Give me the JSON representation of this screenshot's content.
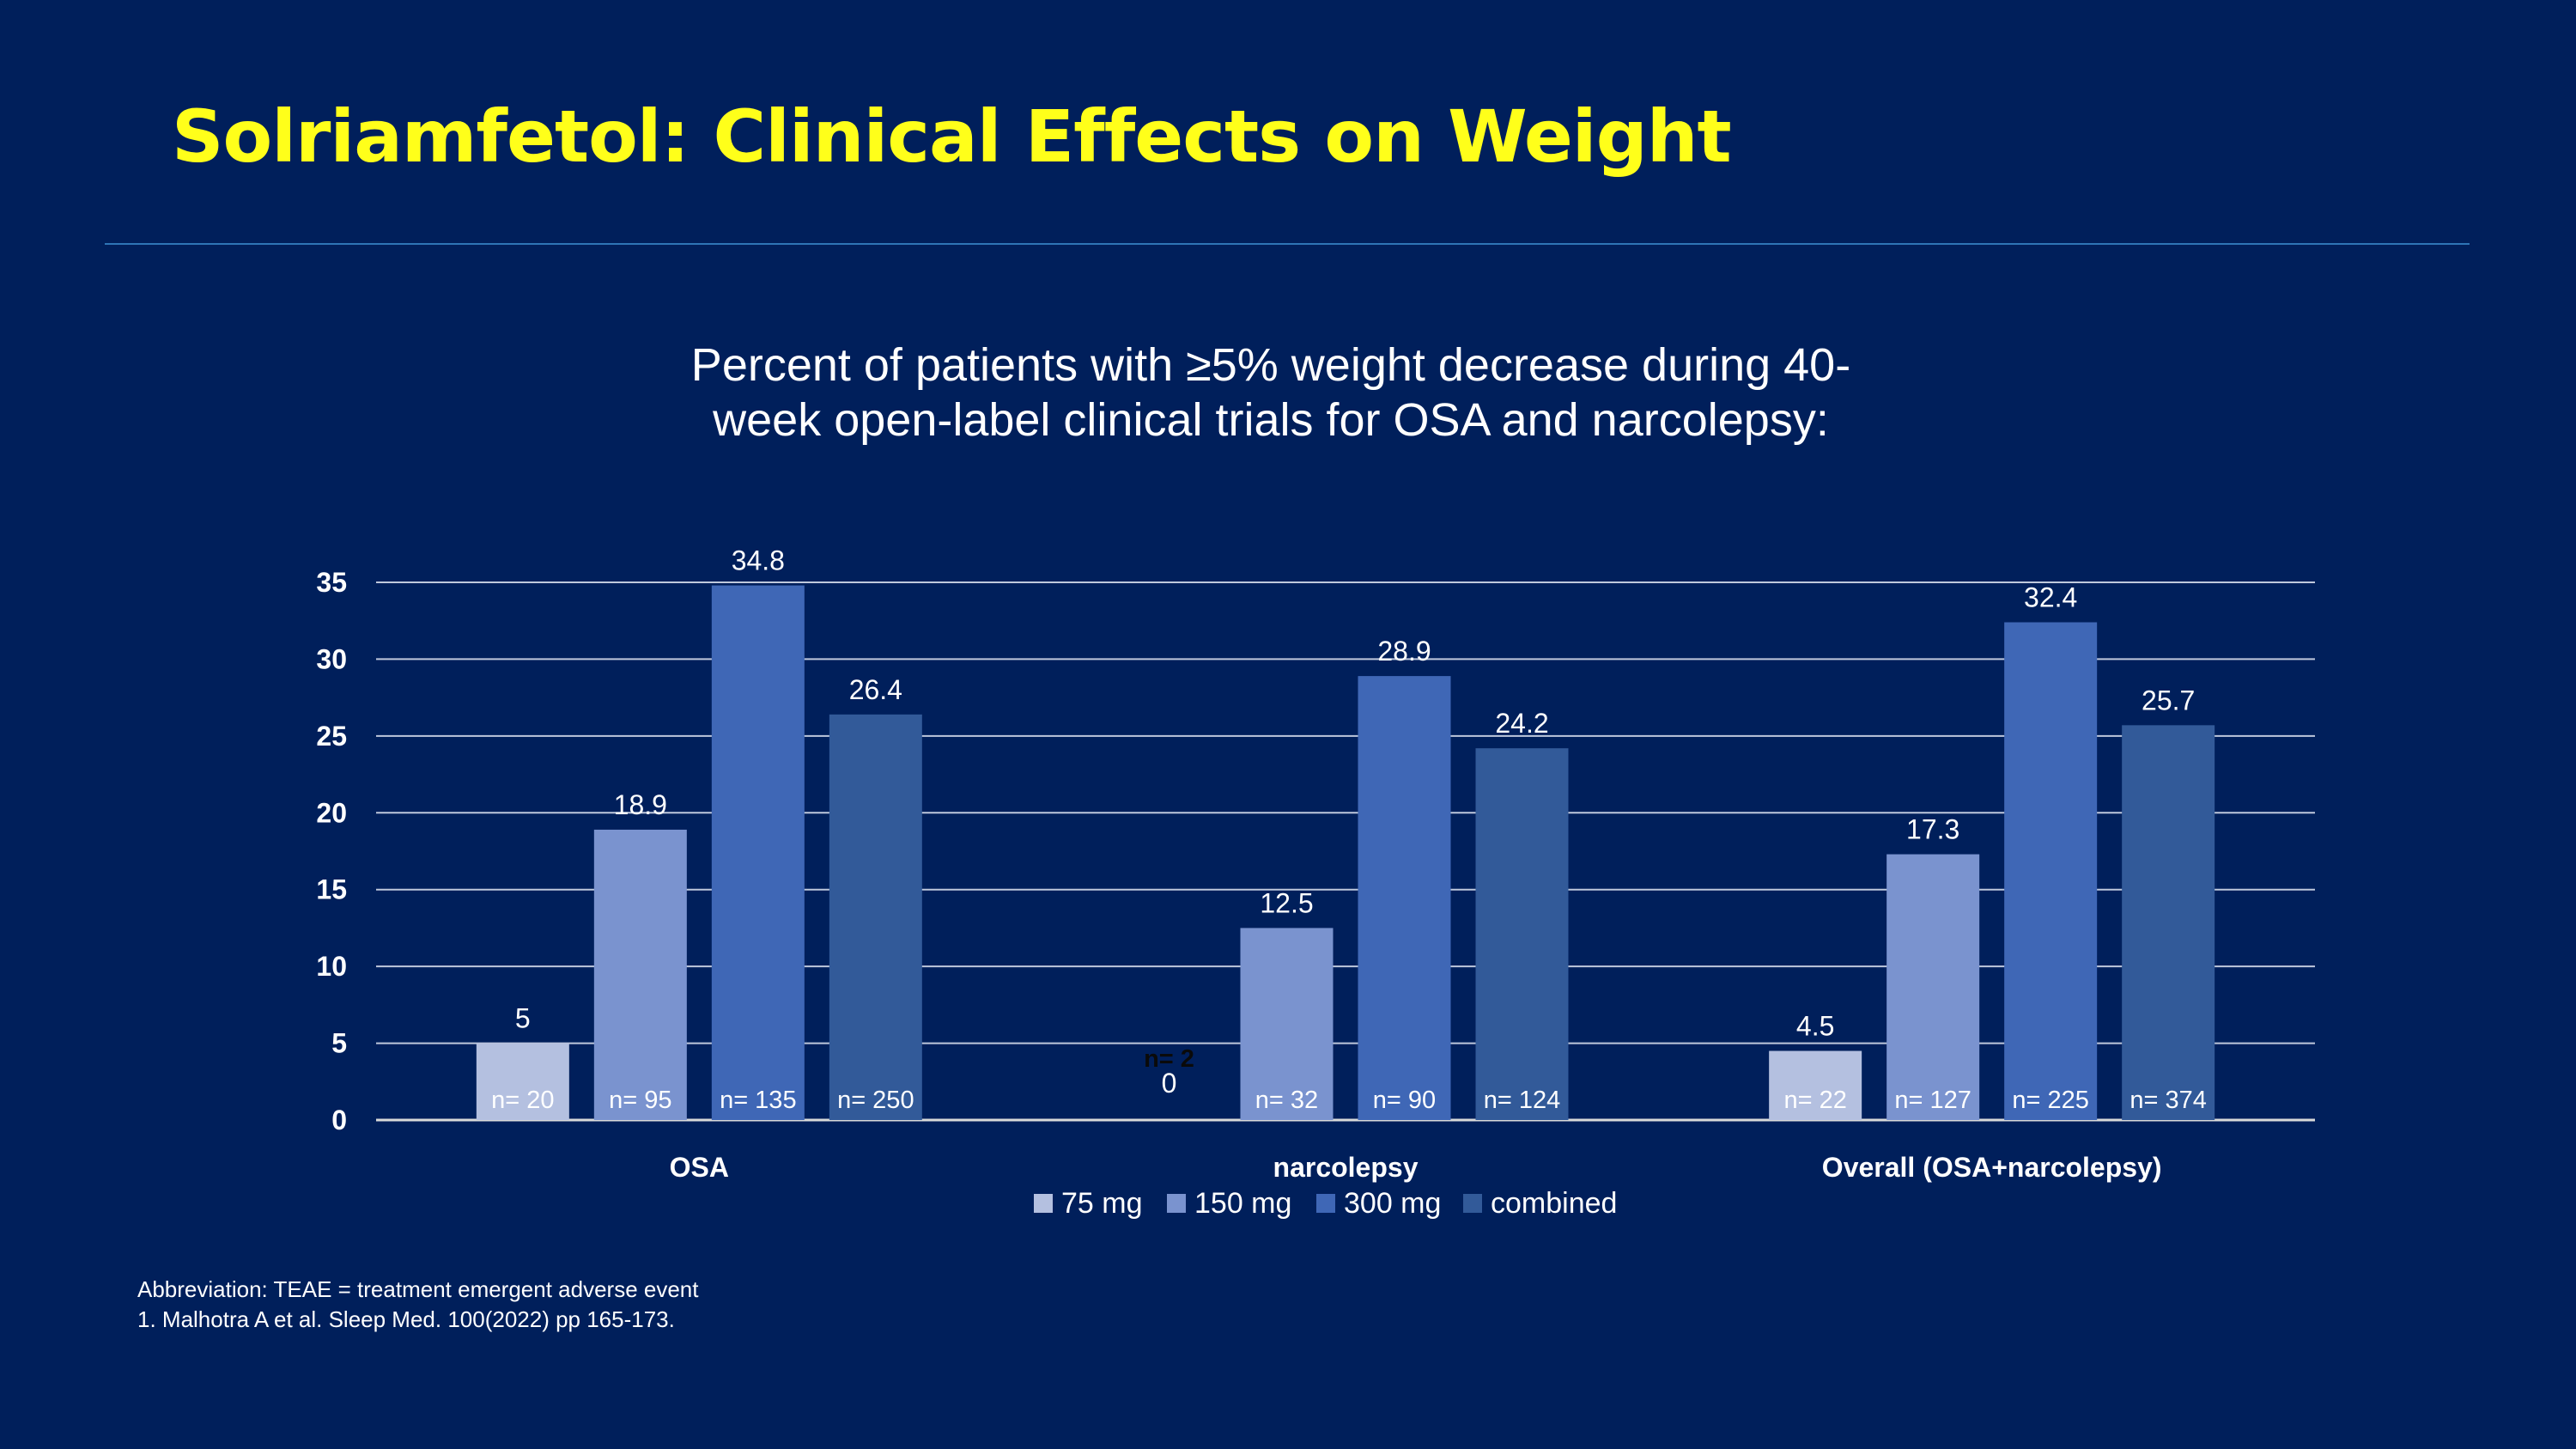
{
  "slide": {
    "title": "Solriamfetol: Clinical Effects on Weight",
    "subtitle_line1": "Percent of patients with ≥5% weight decrease during 40-",
    "subtitle_line2": "week open-label clinical trials for OSA and narcolepsy:"
  },
  "chart_data": {
    "type": "bar",
    "title": "Percent of patients with ≥5% weight decrease during 40-week open-label clinical trials for OSA and narcolepsy:",
    "categories": [
      "OSA",
      "narcolepsy",
      "Overall (OSA+narcolepsy)"
    ],
    "ylim": [
      0,
      35
    ],
    "yticks": [
      0,
      5,
      10,
      15,
      20,
      25,
      30,
      35
    ],
    "grid": true,
    "legend_position": "bottom",
    "series": [
      {
        "name": "75 mg",
        "color": "#b4c0e0",
        "values": [
          5,
          0,
          4.5
        ],
        "labels": [
          "5",
          "0",
          "4.5"
        ],
        "n_labels": [
          "n= 20",
          "n= 2",
          "n= 22"
        ]
      },
      {
        "name": "150 mg",
        "color": "#7a93cf",
        "values": [
          18.9,
          12.5,
          17.3
        ],
        "labels": [
          "18.9",
          "12.5",
          "17.3"
        ],
        "n_labels": [
          "n= 95",
          "n= 32",
          "n= 127"
        ]
      },
      {
        "name": "300 mg",
        "color": "#3f67b6",
        "values": [
          34.8,
          28.9,
          32.4
        ],
        "labels": [
          "34.8",
          "28.9",
          "32.4"
        ],
        "n_labels": [
          "n= 135",
          "n= 90",
          "n= 225"
        ]
      },
      {
        "name": "combined",
        "color": "#325a99",
        "values": [
          26.4,
          24.2,
          25.7
        ],
        "labels": [
          "26.4",
          "24.2",
          "25.7"
        ],
        "n_labels": [
          "n= 250",
          "n= 124",
          "n= 374"
        ]
      }
    ]
  },
  "footnotes": {
    "line1": "Abbreviation: TEAE = treatment emergent adverse event",
    "line2": "1. Malhotra A et al. Sleep Med. 100(2022) pp 165-173."
  }
}
